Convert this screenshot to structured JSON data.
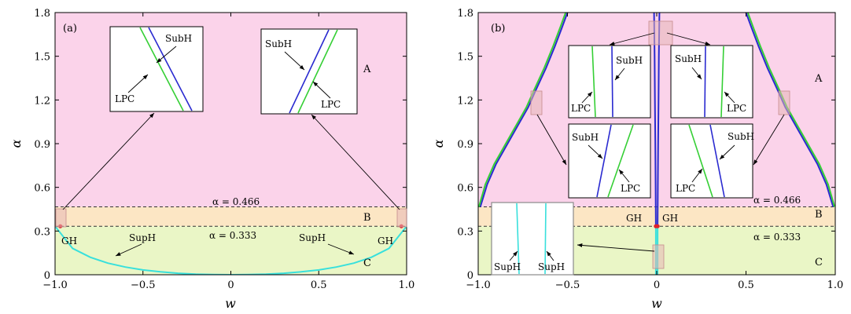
{
  "chart_data": [
    {
      "type": "line",
      "panel_label": "(a)",
      "xlabel": "w",
      "ylabel": "α",
      "xlim": [
        -1.0,
        1.0
      ],
      "ylim": [
        0,
        1.8
      ],
      "xticks": [
        -1.0,
        -0.5,
        0,
        0.5,
        1.0
      ],
      "xtick_labels": [
        "−1.0",
        "−0.5",
        "0",
        "0.5",
        "1.0"
      ],
      "yticks": [
        0,
        0.3,
        0.6,
        0.9,
        1.2,
        1.5,
        1.8
      ],
      "ytick_labels": [
        "0",
        "0.3",
        "0.6",
        "0.9",
        "1.2",
        "1.5",
        "1.8"
      ],
      "regions": [
        {
          "label": "A",
          "range": [
            0.466,
            1.8
          ],
          "color": "#fbd3ea"
        },
        {
          "label": "B",
          "range": [
            0.333,
            0.466
          ],
          "color": "#fce6c4"
        },
        {
          "label": "C",
          "range": [
            0,
            0.333
          ],
          "color": "#eaf6c6"
        }
      ],
      "threshold_lines": [
        {
          "y": 0.466,
          "label": "α = 0.466"
        },
        {
          "y": 0.333,
          "label": "α = 0.333"
        }
      ],
      "series": [
        {
          "name": "SupH",
          "color": "#38e0dc",
          "x": [
            -1.0,
            -0.9,
            -0.8,
            -0.7,
            -0.6,
            -0.5,
            -0.4,
            -0.3,
            -0.2,
            -0.1,
            0,
            0.1,
            0.2,
            0.3,
            0.4,
            0.5,
            0.6,
            0.7,
            0.8,
            0.9,
            1.0
          ],
          "y": [
            0.333,
            0.181,
            0.12,
            0.08,
            0.053,
            0.033,
            0.02,
            0.01,
            0.004,
            0.001,
            0.0,
            0.001,
            0.004,
            0.01,
            0.02,
            0.033,
            0.053,
            0.08,
            0.12,
            0.181,
            0.333
          ]
        }
      ],
      "points": [
        {
          "label": "GH",
          "x": -0.97,
          "y": 0.333,
          "color": "#e0202a"
        },
        {
          "label": "GH",
          "x": 0.97,
          "y": 0.333,
          "color": "#e0202a"
        }
      ],
      "annotations": [
        {
          "text": "SupH",
          "x": -0.58,
          "y": 0.135
        },
        {
          "text": "SupH",
          "x": 0.42,
          "y": 0.135
        },
        {
          "text": "GH",
          "x": -0.93,
          "y": 0.23
        },
        {
          "text": "GH",
          "x": 0.87,
          "y": 0.23
        }
      ],
      "insets": [
        {
          "labels": [
            "SubH",
            "LPC"
          ]
        },
        {
          "labels": [
            "SubH",
            "LPC"
          ]
        }
      ]
    },
    {
      "type": "line",
      "panel_label": "(b)",
      "xlabel": "w",
      "ylabel": "α",
      "xlim": [
        -1.0,
        1.0
      ],
      "ylim": [
        0,
        1.8
      ],
      "xticks": [
        -1.0,
        -0.5,
        0,
        0.5,
        1.0
      ],
      "xtick_labels": [
        "−1.0",
        "−0.5",
        "0",
        "0.5",
        "1.0"
      ],
      "yticks": [
        0,
        0.3,
        0.6,
        0.9,
        1.2,
        1.5,
        1.8
      ],
      "ytick_labels": [
        "0",
        "0.3",
        "0.6",
        "0.9",
        "1.2",
        "1.5",
        "1.8"
      ],
      "regions": [
        {
          "label": "A",
          "range": [
            0.466,
            1.8
          ],
          "color": "#fbd3ea"
        },
        {
          "label": "B",
          "range": [
            0.333,
            0.466
          ],
          "color": "#fce6c4"
        },
        {
          "label": "C",
          "range": [
            0,
            0.333
          ],
          "color": "#eaf6c6"
        }
      ],
      "threshold_lines": [
        {
          "y": 0.466,
          "label": "α = 0.466"
        },
        {
          "y": 0.333,
          "label": "α = 0.333"
        }
      ],
      "series": [
        {
          "name": "SubH",
          "color": "#2a2ad0",
          "segments": [
            {
              "x": [
                -0.988,
                -0.95,
                -0.9,
                -0.84,
                -0.78,
                -0.72,
                -0.68,
                -0.62,
                -0.57,
                -0.53,
                -0.5
              ],
              "y": [
                0.466,
                0.62,
                0.76,
                0.89,
                1.02,
                1.15,
                1.26,
                1.42,
                1.57,
                1.7,
                1.8
              ]
            },
            {
              "x": [
                0.988,
                0.95,
                0.9,
                0.84,
                0.78,
                0.72,
                0.68,
                0.62,
                0.57,
                0.53,
                0.5
              ],
              "y": [
                0.466,
                0.62,
                0.76,
                0.89,
                1.02,
                1.15,
                1.26,
                1.42,
                1.57,
                1.7,
                1.8
              ]
            },
            {
              "x": [
                -0.005,
                -0.006,
                -0.008,
                -0.01,
                -0.012,
                -0.015
              ],
              "y": [
                0.333,
                0.6,
                0.9,
                1.2,
                1.5,
                1.8
              ]
            },
            {
              "x": [
                0.005,
                0.006,
                0.008,
                0.01,
                0.012,
                0.015
              ],
              "y": [
                0.333,
                0.6,
                0.9,
                1.2,
                1.5,
                1.8
              ]
            }
          ]
        },
        {
          "name": "LPC",
          "color": "#35cf35",
          "segments": [
            {
              "x": [
                -0.996,
                -0.96,
                -0.91,
                -0.85,
                -0.79,
                -0.73,
                -0.69,
                -0.63,
                -0.58,
                -0.54,
                -0.51
              ],
              "y": [
                0.466,
                0.62,
                0.76,
                0.89,
                1.02,
                1.15,
                1.26,
                1.42,
                1.57,
                1.7,
                1.8
              ]
            },
            {
              "x": [
                0.996,
                0.96,
                0.91,
                0.85,
                0.79,
                0.73,
                0.69,
                0.63,
                0.58,
                0.54,
                0.51
              ],
              "y": [
                0.466,
                0.62,
                0.76,
                0.89,
                1.02,
                1.15,
                1.26,
                1.42,
                1.57,
                1.7,
                1.8
              ]
            }
          ]
        },
        {
          "name": "SupH",
          "color": "#38e0dc",
          "segments": [
            {
              "x": [
                -0.005,
                -0.005
              ],
              "y": [
                0.0,
                0.333
              ]
            },
            {
              "x": [
                0.005,
                0.005
              ],
              "y": [
                0.0,
                0.333
              ]
            }
          ]
        }
      ],
      "points": [
        {
          "label": "GH",
          "x": -0.005,
          "y": 0.333,
          "color": "#e0202a"
        },
        {
          "label": "GH",
          "x": 0.005,
          "y": 0.333,
          "color": "#e0202a"
        }
      ],
      "annotations": [
        {
          "text": "GH",
          "x": -0.08,
          "y": 0.39
        },
        {
          "text": "GH",
          "x": 0.04,
          "y": 0.39
        }
      ],
      "insets": [
        {
          "labels": [
            "SubH",
            "LPC"
          ]
        },
        {
          "labels": [
            "SubH",
            "LPC"
          ]
        },
        {
          "labels": [
            "SubH",
            "LPC"
          ]
        },
        {
          "labels": [
            "SubH",
            "LPC"
          ]
        },
        {
          "labels": [
            "SupH",
            "SupH"
          ]
        }
      ]
    }
  ]
}
